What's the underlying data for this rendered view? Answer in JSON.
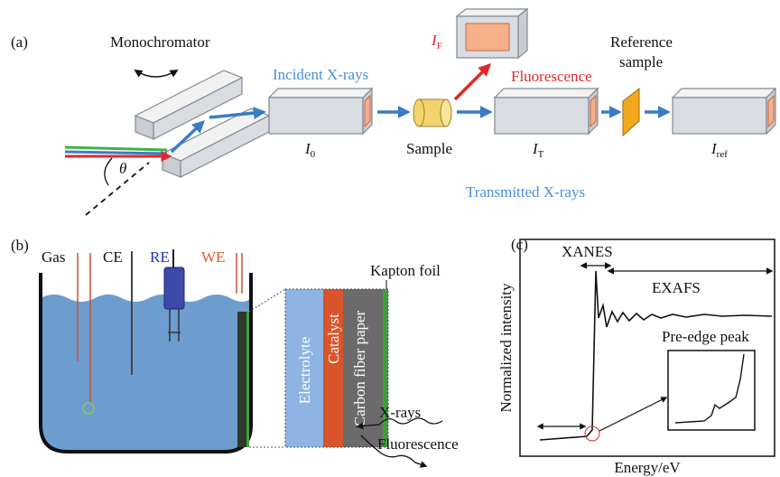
{
  "panel_a": {
    "label": "(a)",
    "monochromator": "Monochromator",
    "angle": "θ",
    "incident": "Incident X-rays",
    "fluorescence_detector": {
      "symbol": "I",
      "subscript": "F"
    },
    "fluorescence": "Fluorescence",
    "reference_sample": [
      "Reference",
      "sample"
    ],
    "detectors": [
      {
        "symbol": "I",
        "subscript": "0"
      },
      {
        "symbol": "I",
        "subscript": "T"
      },
      {
        "symbol": "I",
        "subscript": "ref"
      }
    ],
    "sample": "Sample",
    "transmitted": "Transmitted X-rays"
  },
  "panel_b": {
    "label": "(b)",
    "electrodes": [
      "Gas",
      "CE",
      "RE",
      "WE"
    ],
    "kapton": "Kapton foil",
    "layers": [
      "Electrolyte",
      "Catalyst",
      "Carbon fiber paper"
    ],
    "xrays": "X-rays",
    "fluorescence": "Fluorescence"
  },
  "panel_c": {
    "label": "(c)",
    "xanes": "XANES",
    "exafs": "EXAFS",
    "pre_edge": "Pre-edge peak",
    "y_label": "Normalized intensity",
    "x_label": "Energy/eV"
  }
}
